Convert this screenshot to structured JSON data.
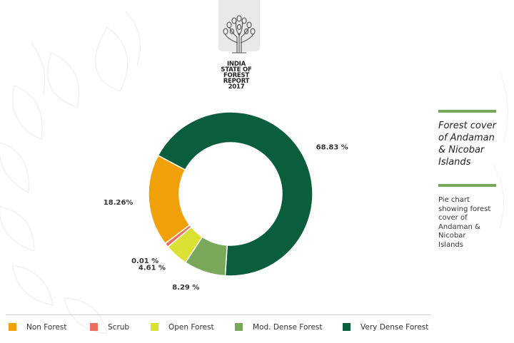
{
  "logo": {
    "lines": [
      "INDIA",
      "STATE OF",
      "FOREST",
      "REPORT",
      "2017"
    ]
  },
  "side_panel": {
    "title_lines": [
      "Forest cover",
      "of Andaman",
      "& Nicobar",
      "Islands"
    ],
    "caption_lines": [
      "Pie chart",
      "showing forest",
      "cover of",
      "Andaman &",
      "Nicobar",
      "Islands"
    ]
  },
  "chart_data": {
    "type": "pie",
    "donut": true,
    "categories": [
      "Non Forest",
      "Scrub",
      "Open Forest",
      "Mod. Dense Forest",
      "Very Dense Forest"
    ],
    "values": [
      18.26,
      0.01,
      4.61,
      8.29,
      68.83
    ],
    "labels": [
      "18.26%",
      "0.01 %",
      "4.61 %",
      "8.29 %",
      "68.83 %"
    ],
    "colors": [
      "#f0a10a",
      "#ee6e5e",
      "#dbe133",
      "#7aa85a",
      "#0a5e3d"
    ],
    "legend_position": "bottom",
    "unit": "%"
  }
}
